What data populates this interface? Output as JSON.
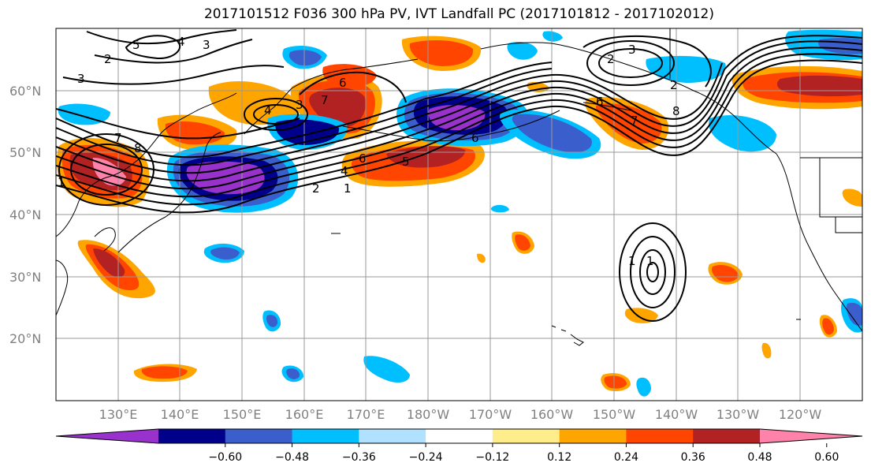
{
  "title": "2017101512 F036 300 hPa PV, IVT Landfall PC (2017101812 - 2017102012)",
  "lat_labels": [
    "60°N",
    "50°N",
    "40°N",
    "30°N",
    "20°N"
  ],
  "lon_labels": [
    "130°E",
    "140°E",
    "150°E",
    "160°E",
    "170°E",
    "180°W",
    "170°W",
    "160°W",
    "150°W",
    "140°W",
    "130°W",
    "120°W"
  ],
  "colorbar": {
    "ticks": [
      "−0.60",
      "−0.48",
      "−0.36",
      "−0.24",
      "−0.12",
      "0.12",
      "0.24",
      "0.36",
      "0.48",
      "0.60"
    ],
    "colors": [
      "#9932CC",
      "#00008B",
      "#3A5FCD",
      "#00BFFF",
      "#B0E2FF",
      "#FFFFFF",
      "#FFEC8B",
      "#FFA500",
      "#FF4500",
      "#B22222",
      "#FF82AB"
    ]
  },
  "contour_labels": [
    "2",
    "5",
    "4",
    "3",
    "3",
    "4",
    "7",
    "6",
    "3",
    "7",
    "8",
    "1",
    "2",
    "1",
    "4",
    "6",
    "5",
    "3",
    "2",
    "2",
    "6",
    "8",
    "7",
    "6",
    "1",
    "1"
  ]
}
